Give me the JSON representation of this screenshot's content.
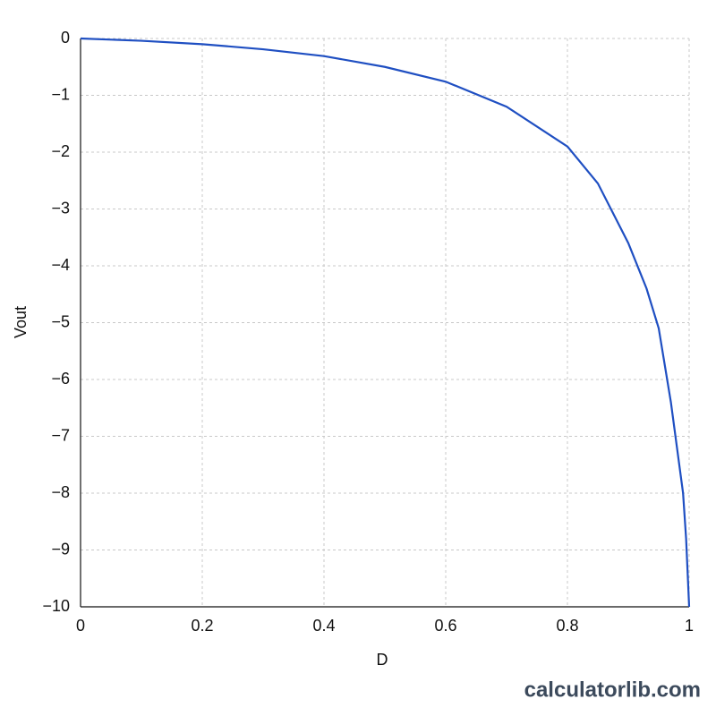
{
  "chart_data": {
    "type": "line",
    "x_label": "D",
    "y_label": "Vout",
    "x": [
      0,
      0.1,
      0.2,
      0.3,
      0.4,
      0.5,
      0.6,
      0.7,
      0.8,
      0.85,
      0.9,
      0.93,
      0.95,
      0.97,
      0.98,
      0.99,
      0.995,
      1
    ],
    "series": [
      {
        "color": "#1f4fc2",
        "values": [
          0,
          -0.04,
          -0.1,
          -0.19,
          -0.31,
          -0.5,
          -0.76,
          -1.2,
          -1.9,
          -2.55,
          -3.6,
          -4.4,
          -5.1,
          -6.4,
          -7.2,
          -8.0,
          -8.8,
          -10
        ]
      }
    ],
    "xlim": [
      0,
      1
    ],
    "ylim": [
      -10,
      0
    ],
    "xticks": [
      0,
      0.2,
      0.4,
      0.6,
      0.8,
      1
    ],
    "yticks": [
      0,
      {
        "value": -1,
        "label": "−1"
      },
      {
        "value": -2,
        "label": "−2"
      },
      {
        "value": -3,
        "label": "−3"
      },
      {
        "value": -4,
        "label": "−4"
      },
      {
        "value": -5,
        "label": "−5"
      },
      {
        "value": -6,
        "label": "−6"
      },
      {
        "value": -7,
        "label": "−7"
      },
      {
        "value": -8,
        "label": "−8"
      },
      {
        "value": -9,
        "label": "−9"
      },
      {
        "value": -10,
        "label": "−10"
      }
    ],
    "grid": true,
    "watermark": "calculatorlib.com"
  }
}
